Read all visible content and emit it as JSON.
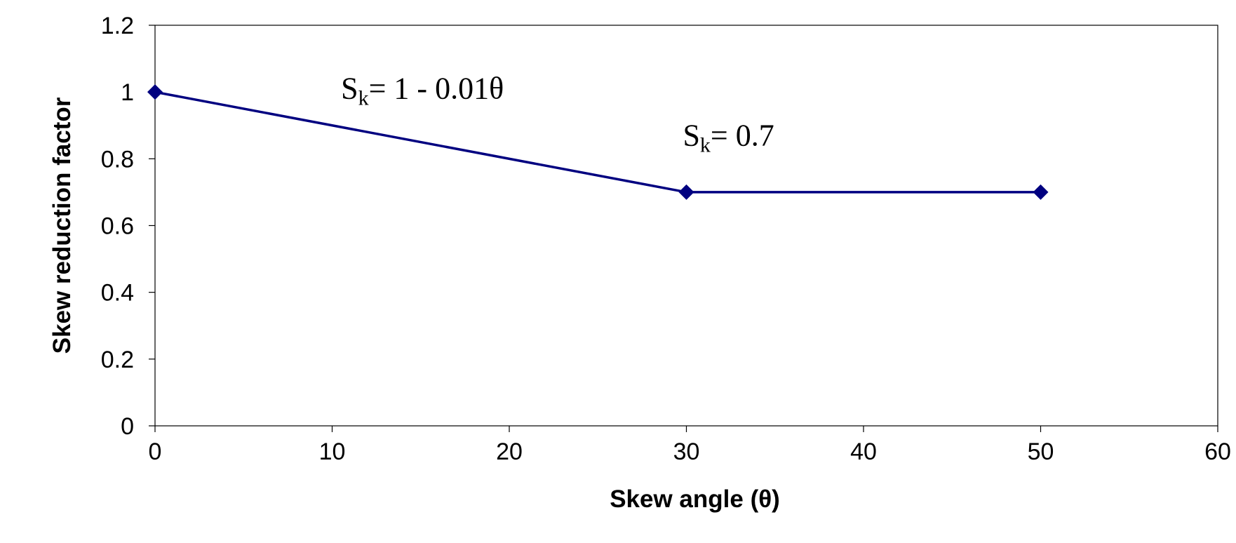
{
  "chart_data": {
    "type": "line",
    "title": "",
    "xlabel": "Skew angle (θ)",
    "ylabel": "Skew reduction factor",
    "xlim": [
      0,
      60
    ],
    "ylim": [
      0,
      1.2
    ],
    "x_ticks": [
      0,
      10,
      20,
      30,
      40,
      50,
      60
    ],
    "y_ticks": [
      0,
      0.2,
      0.4,
      0.6,
      0.8,
      1,
      1.2
    ],
    "x_tick_labels": [
      "0",
      "10",
      "20",
      "30",
      "40",
      "50",
      "60"
    ],
    "y_tick_labels": [
      "0",
      "0.2",
      "0.4",
      "0.6",
      "0.8",
      "1",
      "1.2"
    ],
    "grid": false,
    "legend": "none",
    "series": [
      {
        "x": [
          0,
          30,
          50
        ],
        "y": [
          1,
          0.7,
          0.7
        ],
        "color": "#000080",
        "marker": "diamond"
      }
    ],
    "annotations": [
      {
        "main": "S",
        "sub": "k",
        "rest": "= 1 - 0.01θ",
        "x": 10.5,
        "y": 0.98
      },
      {
        "main": "S",
        "sub": "k",
        "rest": "= 0.7",
        "x": 29.8,
        "y": 0.84
      }
    ]
  }
}
